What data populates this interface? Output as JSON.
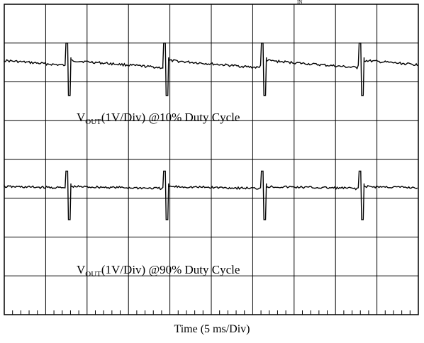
{
  "header_mark": "IN",
  "chart_data": {
    "type": "line",
    "grid": true,
    "grid_divisions": {
      "x": 10,
      "y": 8
    },
    "xlabel": "Time (5 ms/Div)",
    "traces": [
      {
        "name_parts": {
          "prefix": "V",
          "sub": "OUT",
          "suffix": "(1V/Div) @10% Duty Cycle"
        },
        "baseline_div": 1.45,
        "spike_high_div": 1.0,
        "spike_low_div": 2.35,
        "period_div": 2.36,
        "first_edge_div": 1.47,
        "droop_div": 0.2
      },
      {
        "name_parts": {
          "prefix": "V",
          "sub": "OUT",
          "suffix": "(1V/Div) @90% Duty Cycle"
        },
        "baseline_div": 4.7,
        "spike_high_div": 4.3,
        "spike_low_div": 5.55,
        "period_div": 2.36,
        "first_edge_div": 1.47,
        "droop_div": 0.05
      }
    ],
    "colors": {
      "trace": "#000000",
      "grid": "#000000",
      "background": "#ffffff"
    }
  }
}
